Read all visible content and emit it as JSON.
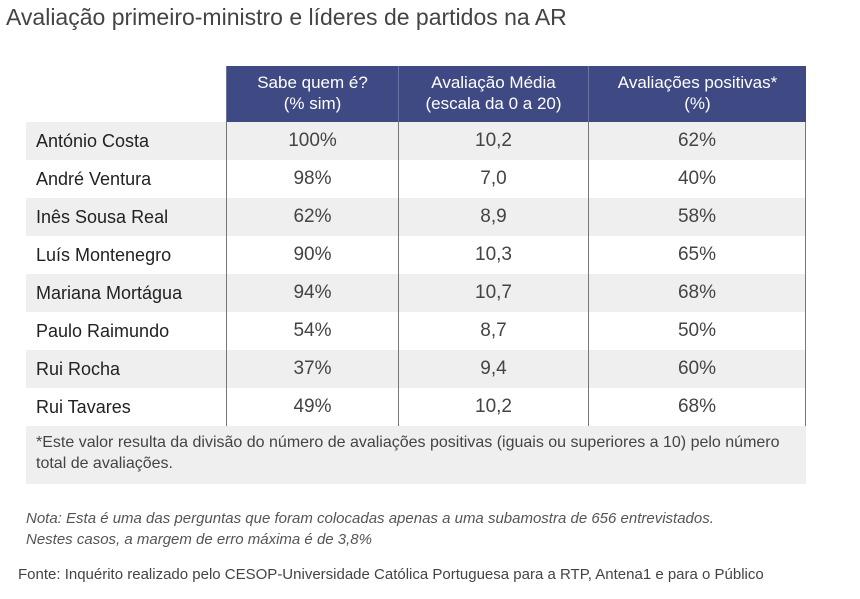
{
  "title": "Avaliação primeiro-ministro e líderes de partidos na AR",
  "headers": [
    {
      "line1": "Sabe quem é?",
      "line2": "(% sim)"
    },
    {
      "line1": "Avaliação Média",
      "line2": "(escala da 0 a 20)"
    },
    {
      "line1": "Avaliações positivas*",
      "line2": "(%)"
    }
  ],
  "rows": [
    {
      "name": "António Costa",
      "known": "100%",
      "avg": "10,2",
      "positive": "62%"
    },
    {
      "name": "André Ventura",
      "known": "98%",
      "avg": "7,0",
      "positive": "40%"
    },
    {
      "name": "Inês Sousa Real",
      "known": "62%",
      "avg": "8,9",
      "positive": "58%"
    },
    {
      "name": "Luís Montenegro",
      "known": "90%",
      "avg": "10,3",
      "positive": "65%"
    },
    {
      "name": "Mariana Mortágua",
      "known": "94%",
      "avg": "10,7",
      "positive": "68%"
    },
    {
      "name": "Paulo Raimundo",
      "known": "54%",
      "avg": "8,7",
      "positive": "50%"
    },
    {
      "name": "Rui Rocha",
      "known": "37%",
      "avg": "9,4",
      "positive": "60%"
    },
    {
      "name": "Rui Tavares",
      "known": "49%",
      "avg": "10,2",
      "positive": "68%"
    }
  ],
  "footnote": "*Este valor resulta da divisão do número de avaliações positivas (iguais ou superiores a 10) pelo número total de avaliações.",
  "nota_line1": "Nota: Esta é uma das perguntas que foram colocadas apenas a uma subamostra de 656 entrevistados.",
  "nota_line2": "Nestes casos, a margem de erro máxima é de 3,8%",
  "fonte": "Fonte: Inquérito realizado pelo CESOP-Universidade Católica Portuguesa para a RTP, Antena1 e para o Público",
  "colors": {
    "header": "#3f4a85",
    "stripe": "#efefef"
  }
}
